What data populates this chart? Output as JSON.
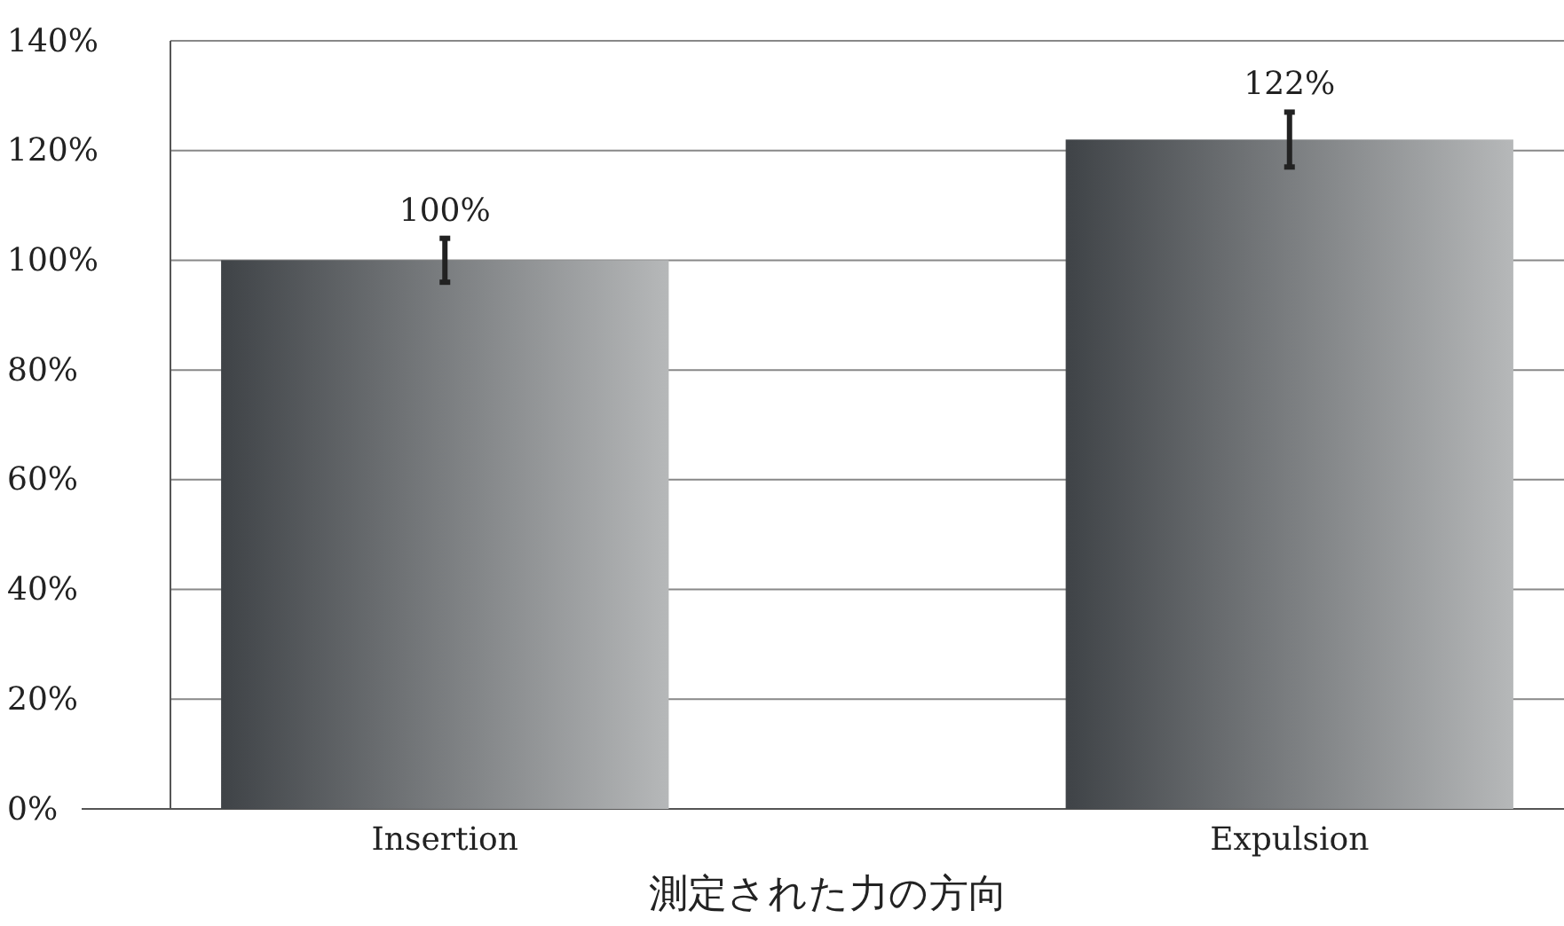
{
  "chart_data": {
    "type": "bar",
    "xlabel": "測定された力の方向",
    "categories": [
      "Insertion",
      "Expulsion"
    ],
    "values": [
      100,
      122
    ],
    "value_labels": [
      "100%",
      "122%"
    ],
    "errors": [
      4,
      [
        117,
        127
      ]
    ],
    "color": "#3f4347",
    "ylim": [
      0,
      140
    ],
    "yticks": [
      {
        "value": 0,
        "label": "0%"
      },
      {
        "value": 20,
        "label": "20%"
      },
      {
        "value": 40,
        "label": "40%"
      },
      {
        "value": 60,
        "label": "60%"
      },
      {
        "value": 80,
        "label": "80%"
      },
      {
        "value": 100,
        "label": "100%"
      },
      {
        "value": 120,
        "label": "120%"
      },
      {
        "value": 140,
        "label": "140%"
      }
    ],
    "grid": "y"
  }
}
